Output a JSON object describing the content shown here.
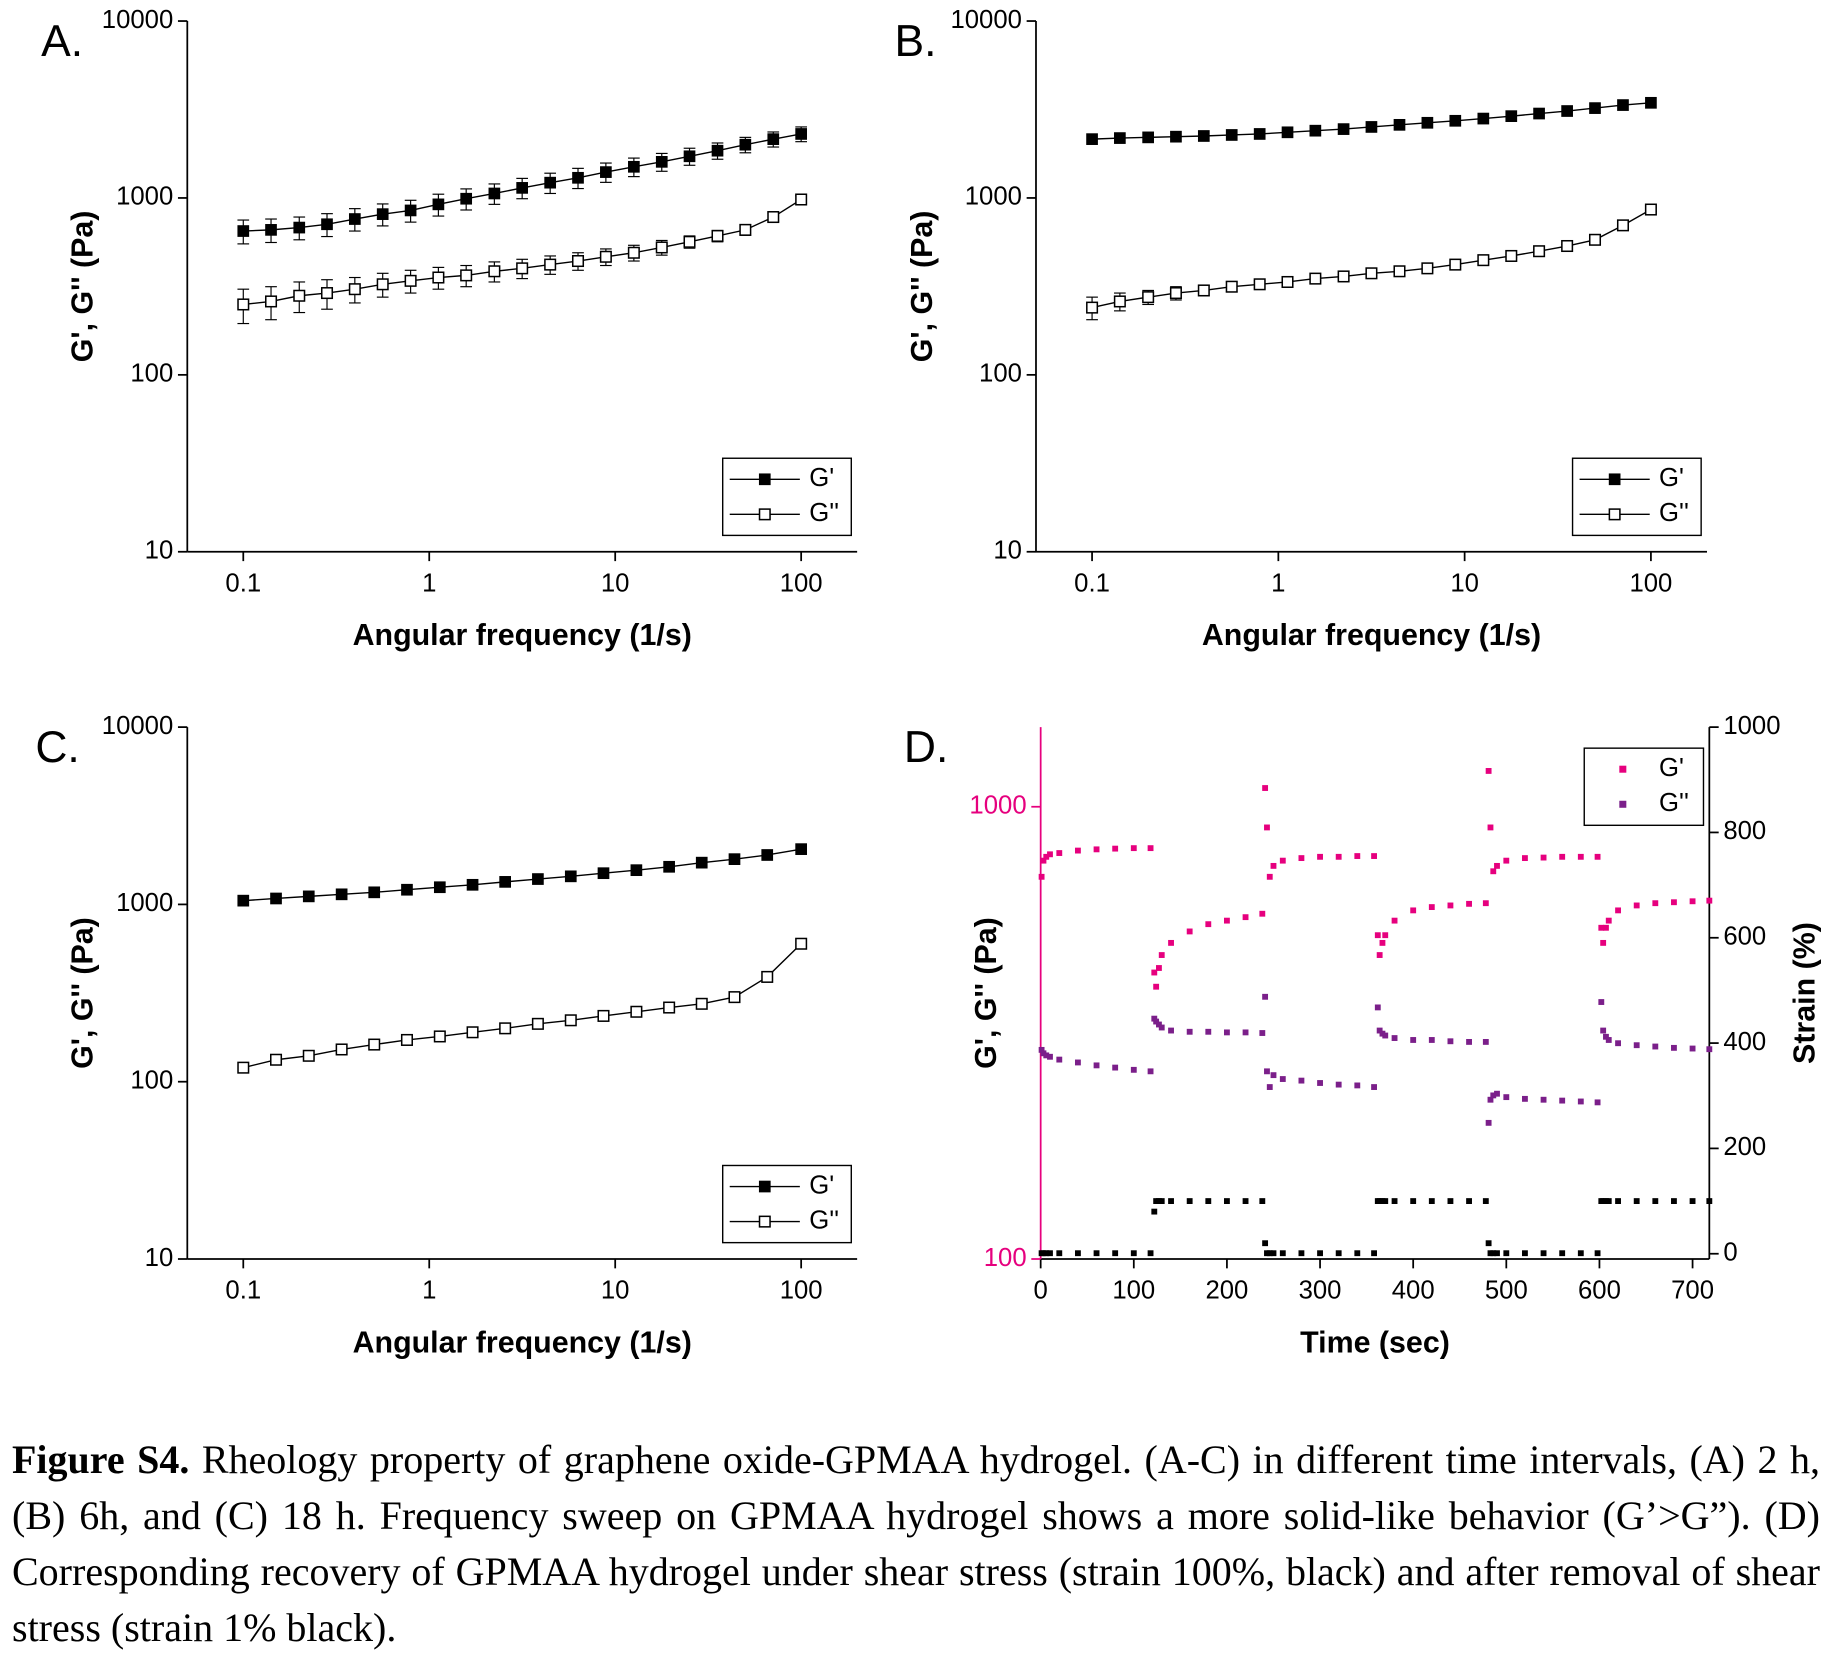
{
  "chart_data": [
    {
      "type": "line",
      "label": "A.",
      "xlabel": "Angular frequency (1/s)",
      "ylabel": "G', G'' (Pa)",
      "xlog": true,
      "ylog": true,
      "xlim": [
        0.05,
        200
      ],
      "ylim": [
        10,
        10000
      ],
      "xticks": [
        0.1,
        1,
        10,
        100
      ],
      "yticks": [
        10,
        100,
        1000,
        10000
      ],
      "legend": "lower right",
      "x": [
        0.1,
        0.141,
        0.2,
        0.282,
        0.398,
        0.562,
        0.794,
        1.12,
        1.58,
        2.24,
        3.16,
        4.47,
        6.31,
        8.91,
        12.6,
        17.8,
        25.1,
        35.5,
        50.1,
        70.8,
        100
      ],
      "series": [
        {
          "name": "G'",
          "color": "#000000",
          "marker": "filled",
          "values": [
            650,
            660,
            680,
            710,
            760,
            810,
            850,
            920,
            990,
            1060,
            1140,
            1220,
            1300,
            1400,
            1500,
            1600,
            1720,
            1850,
            2000,
            2150,
            2300
          ],
          "errors": [
            100,
            100,
            100,
            105,
            110,
            115,
            120,
            130,
            135,
            140,
            150,
            160,
            170,
            175,
            180,
            185,
            190,
            195,
            200,
            210,
            220
          ]
        },
        {
          "name": "G''",
          "color": "#000000",
          "marker": "open",
          "values": [
            250,
            260,
            280,
            290,
            305,
            325,
            340,
            355,
            365,
            385,
            400,
            420,
            440,
            465,
            490,
            525,
            565,
            610,
            660,
            780,
            980
          ],
          "errors": [
            55,
            55,
            55,
            55,
            50,
            50,
            50,
            50,
            50,
            50,
            50,
            50,
            50,
            50,
            50,
            50,
            45,
            45,
            45,
            40,
            50
          ]
        }
      ]
    },
    {
      "type": "line",
      "label": "B.",
      "xlabel": "Angular frequency (1/s)",
      "ylabel": "G', G'' (Pa)",
      "xlog": true,
      "ylog": true,
      "xlim": [
        0.05,
        200
      ],
      "ylim": [
        10,
        10000
      ],
      "xticks": [
        0.1,
        1,
        10,
        100
      ],
      "yticks": [
        10,
        100,
        1000,
        10000
      ],
      "legend": "lower right",
      "x": [
        0.1,
        0.141,
        0.2,
        0.282,
        0.398,
        0.562,
        0.794,
        1.12,
        1.58,
        2.24,
        3.16,
        4.47,
        6.31,
        8.91,
        12.6,
        17.8,
        25.1,
        35.5,
        50.1,
        70.8,
        100
      ],
      "series": [
        {
          "name": "G'",
          "color": "#000000",
          "marker": "filled",
          "values": [
            2150,
            2180,
            2200,
            2220,
            2240,
            2270,
            2300,
            2350,
            2400,
            2450,
            2520,
            2590,
            2660,
            2730,
            2810,
            2900,
            3000,
            3100,
            3220,
            3350,
            3450
          ]
        },
        {
          "name": "G''",
          "color": "#000000",
          "marker": "open",
          "values": [
            240,
            260,
            275,
            290,
            300,
            315,
            325,
            335,
            350,
            360,
            375,
            385,
            400,
            420,
            445,
            470,
            500,
            535,
            580,
            700,
            860
          ],
          "errors": [
            35,
            30,
            25,
            25,
            20,
            20,
            15,
            15,
            10,
            10,
            10,
            10,
            10,
            10,
            10,
            10,
            10,
            10,
            10,
            15,
            20
          ]
        }
      ]
    },
    {
      "type": "line",
      "label": "C.",
      "xlabel": "Angular frequency (1/s)",
      "ylabel": "G', G'' (Pa)",
      "xlog": true,
      "ylog": true,
      "xlim": [
        0.05,
        200
      ],
      "ylim": [
        10,
        10000
      ],
      "xticks": [
        0.1,
        1,
        10,
        100
      ],
      "yticks": [
        10,
        100,
        1000,
        10000
      ],
      "legend": "lower right",
      "x": [
        0.1,
        0.15,
        0.225,
        0.338,
        0.506,
        0.759,
        1.14,
        1.71,
        2.56,
        3.84,
        5.77,
        8.65,
        13,
        19.5,
        29.2,
        43.8,
        65.7,
        100
      ],
      "series": [
        {
          "name": "G'",
          "color": "#000000",
          "marker": "filled",
          "values": [
            1050,
            1080,
            1110,
            1140,
            1170,
            1210,
            1250,
            1290,
            1340,
            1390,
            1440,
            1500,
            1560,
            1630,
            1720,
            1800,
            1900,
            2050
          ]
        },
        {
          "name": "G''",
          "color": "#000000",
          "marker": "open",
          "values": [
            120,
            133,
            140,
            152,
            162,
            172,
            180,
            190,
            200,
            212,
            222,
            235,
            248,
            262,
            275,
            300,
            390,
            600
          ]
        }
      ]
    },
    {
      "type": "scatter",
      "label": "D.",
      "xlabel": "Time (sec)",
      "ylabel": "G', G'' (Pa)",
      "y2label": "Strain (%)",
      "ylog": true,
      "xlim": [
        0,
        718
      ],
      "ylim": [
        100,
        1500
      ],
      "y2lim": [
        -10,
        1000
      ],
      "xticks": [
        0,
        100,
        200,
        300,
        400,
        500,
        600,
        700
      ],
      "yticks": [
        100,
        1000
      ],
      "y2ticks": [
        0,
        200,
        400,
        600,
        800,
        1000
      ],
      "y_axis_color": "#e6007e",
      "legend": "upper right",
      "x": [
        1,
        3,
        6,
        10,
        20,
        40,
        60,
        80,
        100,
        118,
        122,
        124,
        127,
        130,
        140,
        160,
        180,
        200,
        220,
        238,
        241,
        243,
        246,
        250,
        260,
        280,
        300,
        320,
        340,
        358,
        362,
        364,
        367,
        370,
        380,
        400,
        420,
        440,
        460,
        478,
        481,
        483,
        486,
        490,
        500,
        520,
        540,
        560,
        580,
        598,
        602,
        604,
        607,
        610,
        620,
        640,
        660,
        680,
        700,
        718
      ],
      "series": [
        {
          "name": "G'",
          "color": "#e6007e",
          "values": [
            700,
            760,
            775,
            785,
            790,
            800,
            805,
            808,
            810,
            810,
            430,
            400,
            440,
            470,
            500,
            530,
            550,
            560,
            570,
            580,
            1100,
            900,
            700,
            740,
            760,
            770,
            775,
            775,
            778,
            778,
            520,
            470,
            500,
            520,
            560,
            590,
            600,
            605,
            610,
            612,
            1200,
            900,
            720,
            740,
            760,
            770,
            772,
            775,
            775,
            775,
            540,
            500,
            540,
            560,
            590,
            605,
            612,
            615,
            618,
            620
          ]
        },
        {
          "name": "G''",
          "color": "#7b1f8a",
          "values": [
            290,
            285,
            282,
            280,
            276,
            272,
            268,
            265,
            262,
            260,
            340,
            335,
            330,
            325,
            320,
            318,
            318,
            317,
            317,
            316,
            380,
            260,
            240,
            255,
            250,
            248,
            245,
            243,
            242,
            240,
            360,
            320,
            315,
            312,
            308,
            305,
            305,
            303,
            302,
            302,
            200,
            225,
            230,
            232,
            228,
            226,
            225,
            224,
            223,
            222,
            370,
            320,
            310,
            305,
            300,
            297,
            295,
            293,
            292,
            291
          ]
        },
        {
          "color": "#000000",
          "axis": "y2",
          "values": [
            1,
            1,
            1,
            1,
            1,
            1,
            1,
            1,
            1,
            1,
            80,
            100,
            100,
            100,
            100,
            100,
            100,
            100,
            100,
            100,
            20,
            1,
            1,
            1,
            1,
            1,
            1,
            1,
            1,
            1,
            100,
            100,
            100,
            100,
            100,
            100,
            100,
            100,
            100,
            100,
            20,
            1,
            1,
            1,
            1,
            1,
            1,
            1,
            1,
            1,
            100,
            100,
            100,
            100,
            100,
            100,
            100,
            100,
            100,
            100
          ]
        }
      ]
    }
  ],
  "caption": {
    "label": "Figure S4.",
    "text": "Rheology property of graphene oxide-GPMAA hydrogel. (A-C) in different time intervals, (A) 2 h, (B) 6h, and (C) 18 h. Frequency sweep on GPMAA hydrogel shows a more solid-like behavior (G’>G”). (D) Corresponding recovery of GPMAA hydrogel under shear stress (strain 100%, black) and after removal of shear stress (strain 1% black)."
  }
}
